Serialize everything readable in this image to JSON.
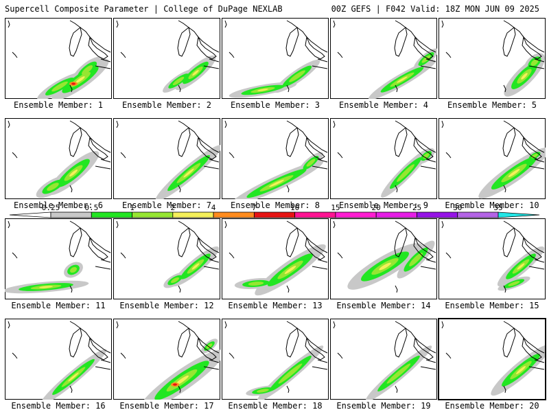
{
  "header": {
    "left": "Supercell Composite Parameter | College of DuPage NEXLAB",
    "right": "00Z GEFS | F042 Valid: 18Z MON JUN 09 2025"
  },
  "colors": {
    "0.25": "#c8c8c8",
    "0.5": "#22e622",
    "1": "#96e632",
    "2": "#f5f05a",
    "4": "#ff8c1e",
    "7": "#e61414",
    "10": "#ff1493",
    "15": "#ff1ed2",
    "20": "#e61ee6",
    "25": "#9614e6",
    "30": "#b464e6",
    "35": "#22e6e6"
  },
  "colorbar": {
    "ticks": [
      "0.25",
      "0.5",
      "1",
      "2",
      "4",
      "7",
      "10",
      "15",
      "20",
      "25",
      "30",
      "35"
    ]
  },
  "panels": [
    {
      "label": "Ensemble Member: 1",
      "intensity": "high"
    },
    {
      "label": "Ensemble Member: 2",
      "intensity": "medium"
    },
    {
      "label": "Ensemble Member: 3",
      "intensity": "medium"
    },
    {
      "label": "Ensemble Member: 4",
      "intensity": "medium"
    },
    {
      "label": "Ensemble Member: 5",
      "intensity": "medium"
    },
    {
      "label": "Ensemble Member: 6",
      "intensity": "medium"
    },
    {
      "label": "Ensemble Member: 7",
      "intensity": "medium"
    },
    {
      "label": "Ensemble Member: 8",
      "intensity": "medium"
    },
    {
      "label": "Ensemble Member: 9",
      "intensity": "low"
    },
    {
      "label": "Ensemble Member: 10",
      "intensity": "medium"
    },
    {
      "label": "Ensemble Member: 11",
      "intensity": "medium"
    },
    {
      "label": "Ensemble Member: 12",
      "intensity": "medium"
    },
    {
      "label": "Ensemble Member: 13",
      "intensity": "medium"
    },
    {
      "label": "Ensemble Member: 14",
      "intensity": "medium"
    },
    {
      "label": "Ensemble Member: 15",
      "intensity": "medium"
    },
    {
      "label": "Ensemble Member: 16",
      "intensity": "medium"
    },
    {
      "label": "Ensemble Member: 17",
      "intensity": "high"
    },
    {
      "label": "Ensemble Member: 18",
      "intensity": "low"
    },
    {
      "label": "Ensemble Member: 19",
      "intensity": "low"
    },
    {
      "label": "Ensemble Member: 20",
      "intensity": "medium",
      "selected": true
    }
  ]
}
